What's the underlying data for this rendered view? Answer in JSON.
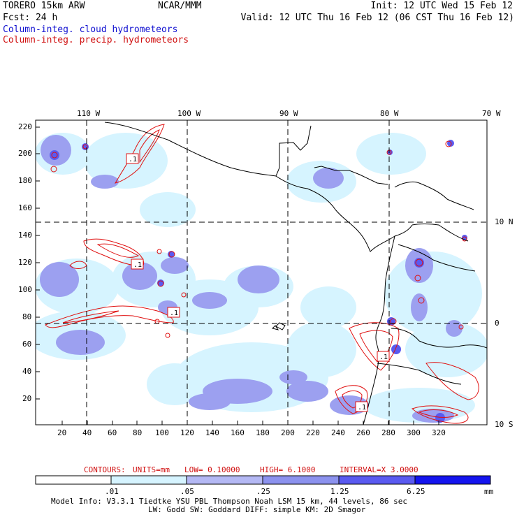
{
  "header": {
    "model": "TORERO  15km ARW",
    "org": "NCAR/MMM",
    "init": "Init: 12 UTC Wed 15 Feb 12",
    "fcst": "Fcst:   24 h",
    "valid": "Valid: 12 UTC Thu 16 Feb 12 (06 CST Thu 16 Feb 12)",
    "field_cloud": "Column-integ. cloud hydrometeors",
    "field_precip": "Column-integ. precip. hydrometeors"
  },
  "colors": {
    "cloud_text": "#1010d0",
    "precip_text": "#d01010",
    "shade_1": "#d6f4ff",
    "shade_2": "#b4b8f4",
    "shade_3": "#8c92ee",
    "shade_4": "#6a6af0",
    "shade_5": "#3c3cf4",
    "shade_6": "#1414ee",
    "contour": "#e01010"
  },
  "map": {
    "lon_labels": [
      "110 W",
      "100 W",
      "90 W",
      "80 W",
      "70 W"
    ],
    "lat_labels": [
      "10 N",
      "0",
      "10 S"
    ],
    "y_ticks": [
      "220",
      "200",
      "180",
      "160",
      "140",
      "120",
      "100",
      "80",
      "60",
      "40",
      "20"
    ],
    "x_ticks": [
      "20",
      "40",
      "60",
      "80",
      "100",
      "120",
      "140",
      "160",
      "180",
      "200",
      "220",
      "240",
      "260",
      "280",
      "300",
      "320"
    ],
    "contour_labels": [
      ".1",
      ".1",
      ".1",
      ".1",
      ".1"
    ]
  },
  "contours": {
    "label": "CONTOURS:",
    "units": "UNITS=mm",
    "low": "LOW= 0.10000",
    "high": "HIGH=  6.1000",
    "interval": "INTERVAL=X  3.0000"
  },
  "legend": {
    "thresholds": [
      ".01",
      ".05",
      ".25",
      "1.25",
      "6.25"
    ],
    "unit": "mm"
  },
  "footer": {
    "line1": "Model Info: V3.3.1   Tiedtke YSU PBL  Thompson    Noah LSM  15 km,   44 levels,   86 sec",
    "line2": "LW: Godd SW: Goddard DIFF: simple KM: 2D Smagor"
  }
}
